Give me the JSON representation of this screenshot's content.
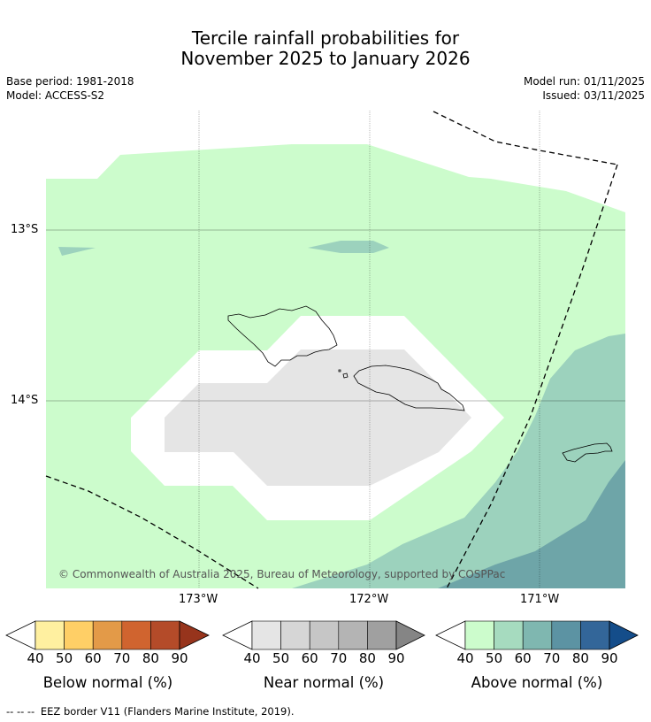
{
  "header": {
    "title_line1": "Tercile rainfall probabilities for",
    "title_line2": "November 2025 to January 2026",
    "base_period": "Base period: 1981-2018",
    "model": "Model: ACCESS-S2",
    "model_run": "Model run: 01/11/2025",
    "issued": "Issued: 03/11/2025"
  },
  "map": {
    "latitude_labels": [
      "13°S",
      "14°S"
    ],
    "longitude_labels": [
      "173°W",
      "172°W",
      "171°W"
    ],
    "copyright": "© Commonwealth of Australia 2025, Bureau of Meteorology, supported by COSPPac",
    "colors": {
      "above_40": "#ccfccc",
      "above_50": "#a6dbbf",
      "above_60": "#9cd2bd",
      "above_70": "#6ea5a8",
      "near_40": "#e5e5e5",
      "white": "#ffffff"
    }
  },
  "colorbars": [
    {
      "title": "Below normal (%)",
      "ticks": [
        "40",
        "50",
        "60",
        "70",
        "80",
        "90"
      ],
      "colors": [
        "#fff0a0",
        "#ffcf66",
        "#e39a48",
        "#d0642f",
        "#b44b29",
        "#97341c"
      ]
    },
    {
      "title": "Near normal (%)",
      "ticks": [
        "40",
        "50",
        "60",
        "70",
        "80",
        "90"
      ],
      "colors": [
        "#e5e5e5",
        "#d6d6d6",
        "#c6c6c6",
        "#b4b4b4",
        "#a0a0a0",
        "#858585"
      ]
    },
    {
      "title": "Above normal (%)",
      "ticks": [
        "40",
        "50",
        "60",
        "70",
        "80",
        "90"
      ],
      "colors": [
        "#ccfccc",
        "#a6dbbf",
        "#7fb7b0",
        "#5c93a3",
        "#336699",
        "#144d8a"
      ]
    }
  ],
  "footnote": {
    "dashes": "--  --  --",
    "text": "EEZ border V11 (Flanders Marine Institute, 2019)."
  }
}
